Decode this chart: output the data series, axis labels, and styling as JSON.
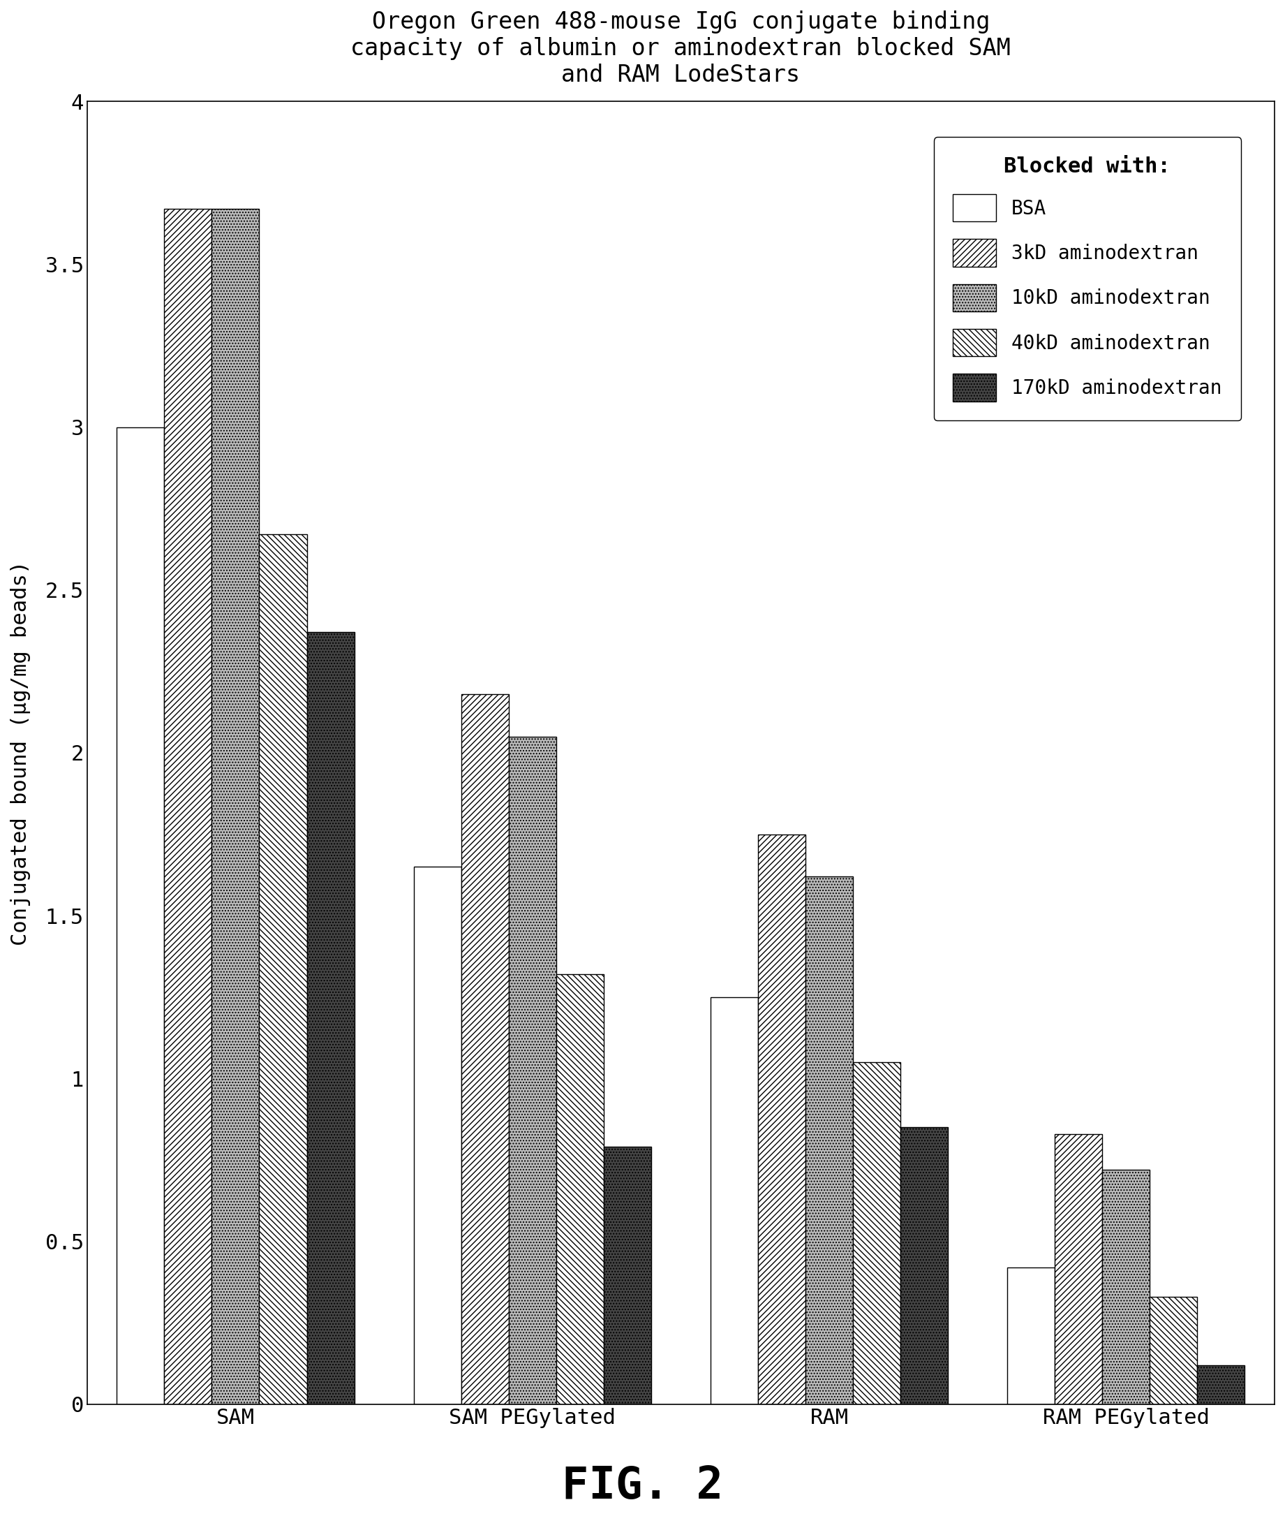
{
  "title": "Oregon Green 488-mouse IgG conjugate binding\ncapacity of albumin or aminodextran blocked SAM\nand RAM LodeStars",
  "ylabel": "Conjugated bound (µg/mg beads)",
  "fig_label": "FIG. 2",
  "categories": [
    "SAM",
    "SAM PEGylated",
    "RAM",
    "RAM PEGylated"
  ],
  "legend_title": "Blocked with:",
  "legend_labels": [
    "BSA",
    "3kD aminodextran",
    "10kD aminodextran",
    "40kD aminodextran",
    "170kD aminodextran"
  ],
  "values": {
    "BSA": [
      3.0,
      1.65,
      1.25,
      0.42
    ],
    "3kD aminodextran": [
      3.67,
      2.18,
      1.75,
      0.83
    ],
    "10kD aminodextran": [
      3.67,
      2.05,
      1.62,
      0.72
    ],
    "40kD aminodextran": [
      2.67,
      1.32,
      1.05,
      0.33
    ],
    "170kD aminodextran": [
      2.37,
      0.79,
      0.85,
      0.12
    ]
  },
  "ylim": [
    0,
    4.0
  ],
  "yticks": [
    0,
    0.5,
    1.0,
    1.5,
    2.0,
    2.5,
    3.0,
    3.5,
    4.0
  ],
  "bar_width": 0.16,
  "background_color": "#ffffff",
  "hatches": [
    "",
    "////",
    "....",
    "\\\\\\\\",
    "...."
  ],
  "facecolors": [
    "white",
    "white",
    "#bbbbbb",
    "white",
    "#444444"
  ],
  "edgecolors": [
    "black",
    "black",
    "black",
    "black",
    "black"
  ]
}
